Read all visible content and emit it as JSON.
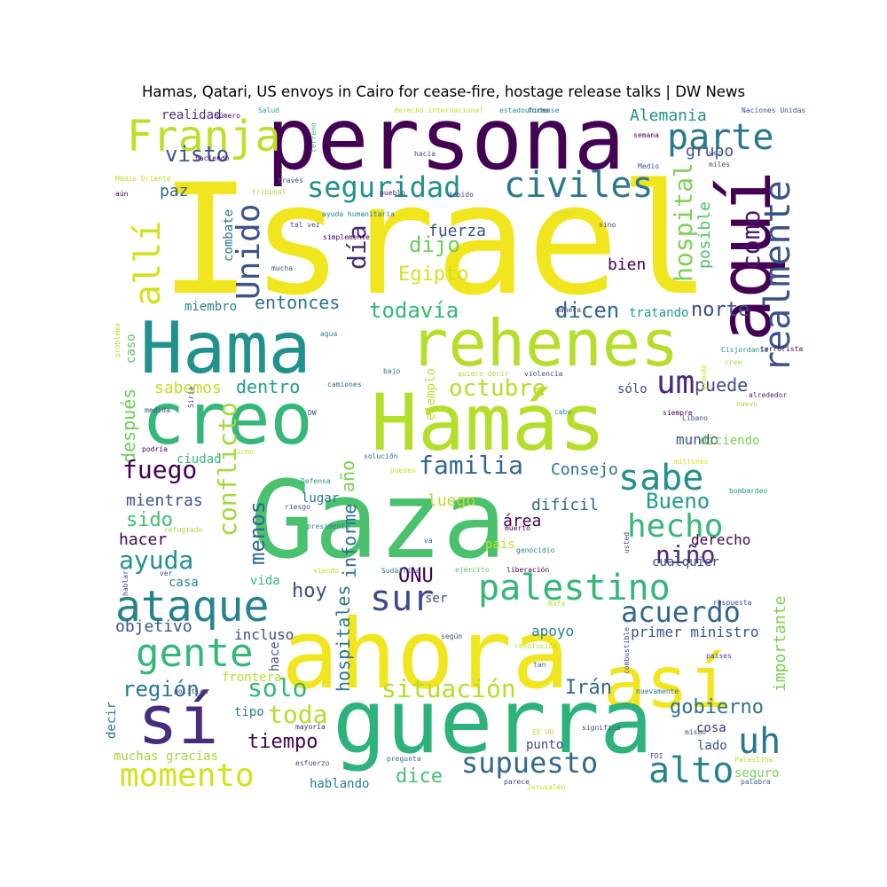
{
  "chart_data": {
    "type": "wordcloud",
    "title": "Hamas, Qatari, US envoys in Cairo for cease-fire, hostage release talks | DW News",
    "words": [
      {
        "text": "Israel",
        "color": "#f1e51d"
      },
      {
        "text": "persona",
        "color": "#440154"
      },
      {
        "text": "Hama",
        "color": "#21918c"
      },
      {
        "text": "rehenes",
        "color": "#b5de2b"
      },
      {
        "text": "Hamás",
        "color": "#b5de2b"
      },
      {
        "text": "creo",
        "color": "#35b779"
      },
      {
        "text": "Gaza",
        "color": "#4ac16d"
      },
      {
        "text": "aquí",
        "color": "#440154"
      },
      {
        "text": "ahora",
        "color": "#f1e51d"
      },
      {
        "text": "así",
        "color": "#f1e51d"
      },
      {
        "text": "sí",
        "color": "#472d7b"
      },
      {
        "text": "guerra",
        "color": "#2db27d"
      },
      {
        "text": "Franja",
        "color": "#bddf26"
      },
      {
        "text": "parte",
        "color": "#2a788e"
      },
      {
        "text": "civiles",
        "color": "#2a788e"
      },
      {
        "text": "seguridad",
        "color": "#21918c"
      },
      {
        "text": "Unido",
        "color": "#3b528b"
      },
      {
        "text": "allí",
        "color": "#d2e21b"
      },
      {
        "text": "visto",
        "color": "#3b528b"
      },
      {
        "text": "realmente",
        "color": "#3b528b"
      },
      {
        "text": "hospital",
        "color": "#7ad151"
      },
      {
        "text": "cómo",
        "color": "#481467"
      },
      {
        "text": "día",
        "color": "#482878"
      },
      {
        "text": "dijo",
        "color": "#6ccd5a"
      },
      {
        "text": "fuerza",
        "color": "#3b528b"
      },
      {
        "text": "Egipto",
        "color": "#d2e21b"
      },
      {
        "text": "bien",
        "color": "#440154"
      },
      {
        "text": "posible",
        "color": "#4ac16d"
      },
      {
        "text": "grupo",
        "color": "#3b528b"
      },
      {
        "text": "Alemania",
        "color": "#21918c"
      },
      {
        "text": "realidad",
        "color": "#472d7b"
      },
      {
        "text": "paz",
        "color": "#31688e"
      },
      {
        "text": "entonces",
        "color": "#2c728e"
      },
      {
        "text": "todavía",
        "color": "#35b779"
      },
      {
        "text": "dicen",
        "color": "#31688e"
      },
      {
        "text": "norte",
        "color": "#3e4a89"
      },
      {
        "text": "tratando",
        "color": "#1f9e89"
      },
      {
        "text": "miembro",
        "color": "#26828e"
      },
      {
        "text": "combate",
        "color": "#2c728e"
      },
      {
        "text": "octubre",
        "color": "#b5de2b"
      },
      {
        "text": "um",
        "color": "#482878"
      },
      {
        "text": "puede",
        "color": "#3e4a89"
      },
      {
        "text": "sabemos",
        "color": "#bddf26"
      },
      {
        "text": "dentro",
        "color": "#1f9e89"
      },
      {
        "text": "sólo",
        "color": "#3e4a89"
      },
      {
        "text": "después",
        "color": "#6ccd5a"
      },
      {
        "text": "caso",
        "color": "#52c569"
      },
      {
        "text": "conflicto",
        "color": "#a0da39"
      },
      {
        "text": "año",
        "color": "#7ad151"
      },
      {
        "text": "familia",
        "color": "#31688e"
      },
      {
        "text": "Consejo",
        "color": "#2c728e"
      },
      {
        "text": "sabe",
        "color": "#21918c"
      },
      {
        "text": "mundo",
        "color": "#3b528b"
      },
      {
        "text": "diciendo",
        "color": "#7ad151"
      },
      {
        "text": "fuego",
        "color": "#440154"
      },
      {
        "text": "ciudad",
        "color": "#35b779"
      },
      {
        "text": "Bueno",
        "color": "#1f9e89"
      },
      {
        "text": "hecho",
        "color": "#35b779"
      },
      {
        "text": "mientras",
        "color": "#3b528b"
      },
      {
        "text": "sido",
        "color": "#44bf70"
      },
      {
        "text": "luego",
        "color": "#b5de2b"
      },
      {
        "text": "difícil",
        "color": "#31688e"
      },
      {
        "text": "área",
        "color": "#440154"
      },
      {
        "text": "lugar",
        "color": "#2c728e"
      },
      {
        "text": "hacer",
        "color": "#440154"
      },
      {
        "text": "ayuda",
        "color": "#21918c"
      },
      {
        "text": "menos",
        "color": "#31688e"
      },
      {
        "text": "niño",
        "color": "#472d7b"
      },
      {
        "text": "derecho",
        "color": "#440154"
      },
      {
        "text": "ONU",
        "color": "#440154"
      },
      {
        "text": "informe",
        "color": "#2c728e"
      },
      {
        "text": "país",
        "color": "#bddf26"
      },
      {
        "text": "cualquier",
        "color": "#3e4a89"
      },
      {
        "text": "ataque",
        "color": "#26828e"
      },
      {
        "text": "hoy",
        "color": "#3e4a89"
      },
      {
        "text": "sur",
        "color": "#3e4a89"
      },
      {
        "text": "palestino",
        "color": "#35b779"
      },
      {
        "text": "casa",
        "color": "#26828e"
      },
      {
        "text": "vida",
        "color": "#35b779"
      },
      {
        "text": "objetivo",
        "color": "#3b528b"
      },
      {
        "text": "acuerdo",
        "color": "#31688e"
      },
      {
        "text": "gente",
        "color": "#35b779"
      },
      {
        "text": "incluso",
        "color": "#3e4a89"
      },
      {
        "text": "hospitales",
        "color": "#2a788e"
      },
      {
        "text": "apoyo",
        "color": "#26828e"
      },
      {
        "text": "primer ministro",
        "color": "#3b528b"
      },
      {
        "text": "importante",
        "color": "#7ad151"
      },
      {
        "text": "región",
        "color": "#2a788e"
      },
      {
        "text": "solo",
        "color": "#35b779"
      },
      {
        "text": "situación",
        "color": "#b5de2b"
      },
      {
        "text": "Irán",
        "color": "#31688e"
      },
      {
        "text": "gobierno",
        "color": "#2c728e"
      },
      {
        "text": "toda",
        "color": "#b5de2b"
      },
      {
        "text": "tiempo",
        "color": "#440154"
      },
      {
        "text": "uh",
        "color": "#2a788e"
      },
      {
        "text": "momento",
        "color": "#d2e21b"
      },
      {
        "text": "supuesto",
        "color": "#31688e"
      },
      {
        "text": "alto",
        "color": "#26828e"
      },
      {
        "text": "dice",
        "color": "#4ac16d"
      },
      {
        "text": "muchas gracias",
        "color": "#a0da39"
      },
      {
        "text": "hablando",
        "color": "#26828e"
      },
      {
        "text": "lado",
        "color": "#3b528b"
      },
      {
        "text": "cosa",
        "color": "#472d7b"
      },
      {
        "text": "punto",
        "color": "#3e4a89"
      },
      {
        "text": "seguro",
        "color": "#7ad151"
      },
      {
        "text": "tipo",
        "color": "#26828e"
      },
      {
        "text": "decir",
        "color": "#2a788e"
      },
      {
        "text": "frontera",
        "color": "#b5de2b"
      },
      {
        "text": "hace",
        "color": "#3b528b"
      },
      {
        "text": "haciendo",
        "color": "#440154"
      },
      {
        "text": "hacia",
        "color": "#3e4a89"
      },
      {
        "text": "través",
        "color": "#3e4a89"
      },
      {
        "text": "pueblo",
        "color": "#482878"
      },
      {
        "text": "debido",
        "color": "#3e4a89"
      },
      {
        "text": "tribunal",
        "color": "#a0da39"
      },
      {
        "text": "ayuda humanitaria",
        "color": "#26828e"
      },
      {
        "text": "tal vez",
        "color": "#3e4a89"
      },
      {
        "text": "simplemente",
        "color": "#440154"
      },
      {
        "text": "mucha",
        "color": "#3e4a89"
      },
      {
        "text": "problema",
        "color": "#bddf26"
      },
      {
        "text": "Medio Oriente",
        "color": "#bddf26"
      },
      {
        "text": "aún",
        "color": "#440154"
      },
      {
        "text": "número",
        "color": "#440154"
      },
      {
        "text": "Salud",
        "color": "#1f9e89"
      },
      {
        "text": "derecho internacional",
        "color": "#bddf26"
      },
      {
        "text": "estadounidense",
        "color": "#21918c"
      },
      {
        "text": "forma",
        "color": "#3e4a89"
      },
      {
        "text": "Naciones Unidas",
        "color": "#3b528b"
      },
      {
        "text": "terreno",
        "color": "#35b779"
      },
      {
        "text": "semana",
        "color": "#440154"
      },
      {
        "text": "Medio",
        "color": "#3b528b"
      },
      {
        "text": "vez",
        "color": "#31688e"
      },
      {
        "text": "miles",
        "color": "#3e4a89"
      },
      {
        "text": "poder",
        "color": "#d2e21b"
      },
      {
        "text": "sino",
        "color": "#3e4a89"
      },
      {
        "text": "manera",
        "color": "#472d7b"
      },
      {
        "text": "agua",
        "color": "#26828e"
      },
      {
        "text": "bajo",
        "color": "#2a788e"
      },
      {
        "text": "ejemplo",
        "color": "#bddf26"
      },
      {
        "text": "quiero decir",
        "color": "#a0da39"
      },
      {
        "text": "violencia",
        "color": "#3e4a89"
      },
      {
        "text": "Cisjordania",
        "color": "#21918c"
      },
      {
        "text": "cree",
        "color": "#a0da39"
      },
      {
        "text": "terrorista",
        "color": "#440154"
      },
      {
        "text": "grande",
        "color": "#d2e21b"
      },
      {
        "text": "alrededor",
        "color": "#482878"
      },
      {
        "text": "camiones",
        "color": "#31688e"
      },
      {
        "text": "medida",
        "color": "#3e4a89"
      },
      {
        "text": "Siria",
        "color": "#3e4a89"
      },
      {
        "text": "DW",
        "color": "#3e4a89"
      },
      {
        "text": "cabo",
        "color": "#21918c"
      },
      {
        "text": "siempre",
        "color": "#440154"
      },
      {
        "text": "Líbano",
        "color": "#3b528b"
      },
      {
        "text": "nuevo",
        "color": "#a0da39"
      },
      {
        "text": "podría",
        "color": "#440154"
      },
      {
        "text": "dicho",
        "color": "#bddf26"
      },
      {
        "text": "solución",
        "color": "#31688e"
      },
      {
        "text": "pueden",
        "color": "#bddf26"
      },
      {
        "text": "millones",
        "color": "#d2e21b"
      },
      {
        "text": "bombardeo",
        "color": "#1f9e89"
      },
      {
        "text": "refugiado",
        "color": "#a0da39"
      },
      {
        "text": "Defensa",
        "color": "#21918c"
      },
      {
        "text": "presidente",
        "color": "#26828e"
      },
      {
        "text": "muerto",
        "color": "#440154"
      },
      {
        "text": "riesgo",
        "color": "#3b528b"
      },
      {
        "text": "usted",
        "color": "#3e4a89"
      },
      {
        "text": "va",
        "color": "#3b528b"
      },
      {
        "text": "genocidio",
        "color": "#26828e"
      },
      {
        "text": "viendo",
        "color": "#bddf26"
      },
      {
        "text": "ver",
        "color": "#3e4a89"
      },
      {
        "text": "ejército",
        "color": "#52c569"
      },
      {
        "text": "Sudáfrica",
        "color": "#2a788e"
      },
      {
        "text": "liberación",
        "color": "#440154"
      },
      {
        "text": "respuesta",
        "color": "#3e4a89"
      },
      {
        "text": "ser",
        "color": "#3e4a89"
      },
      {
        "text": "Rafa",
        "color": "#bddf26"
      },
      {
        "text": "según",
        "color": "#3b528b"
      },
      {
        "text": "resolución",
        "color": "#b5de2b"
      },
      {
        "text": "combustible",
        "color": "#3e4a89"
      },
      {
        "text": "tan",
        "color": "#31688e"
      },
      {
        "text": "países",
        "color": "#3e4a89"
      },
      {
        "text": "nuevamente",
        "color": "#2a788e"
      },
      {
        "text": "política",
        "color": "#3e4a89"
      },
      {
        "text": "mayoría",
        "color": "#482878"
      },
      {
        "text": "significa",
        "color": "#3e4a89"
      },
      {
        "text": "EE UU",
        "color": "#bddf26"
      },
      {
        "text": "mismo",
        "color": "#3e4a89"
      },
      {
        "text": "pregunta",
        "color": "#31688e"
      },
      {
        "text": "FDI",
        "color": "#3e4a89"
      },
      {
        "text": "Palestina",
        "color": "#bddf26"
      },
      {
        "text": "esfuerzo",
        "color": "#3e4a89"
      },
      {
        "text": "parece",
        "color": "#3e4a89"
      },
      {
        "text": "Jerusalén",
        "color": "#bddf26"
      },
      {
        "text": "palabra",
        "color": "#31688e"
      },
      {
        "text": "hablar",
        "color": "#3e4a89"
      },
      {
        "text": "ejército Israel",
        "color": "#21918c"
      },
      {
        "text": "tener",
        "color": "#3e4a89"
      },
      {
        "text": "gran",
        "color": "#3b528b"
      }
    ]
  }
}
